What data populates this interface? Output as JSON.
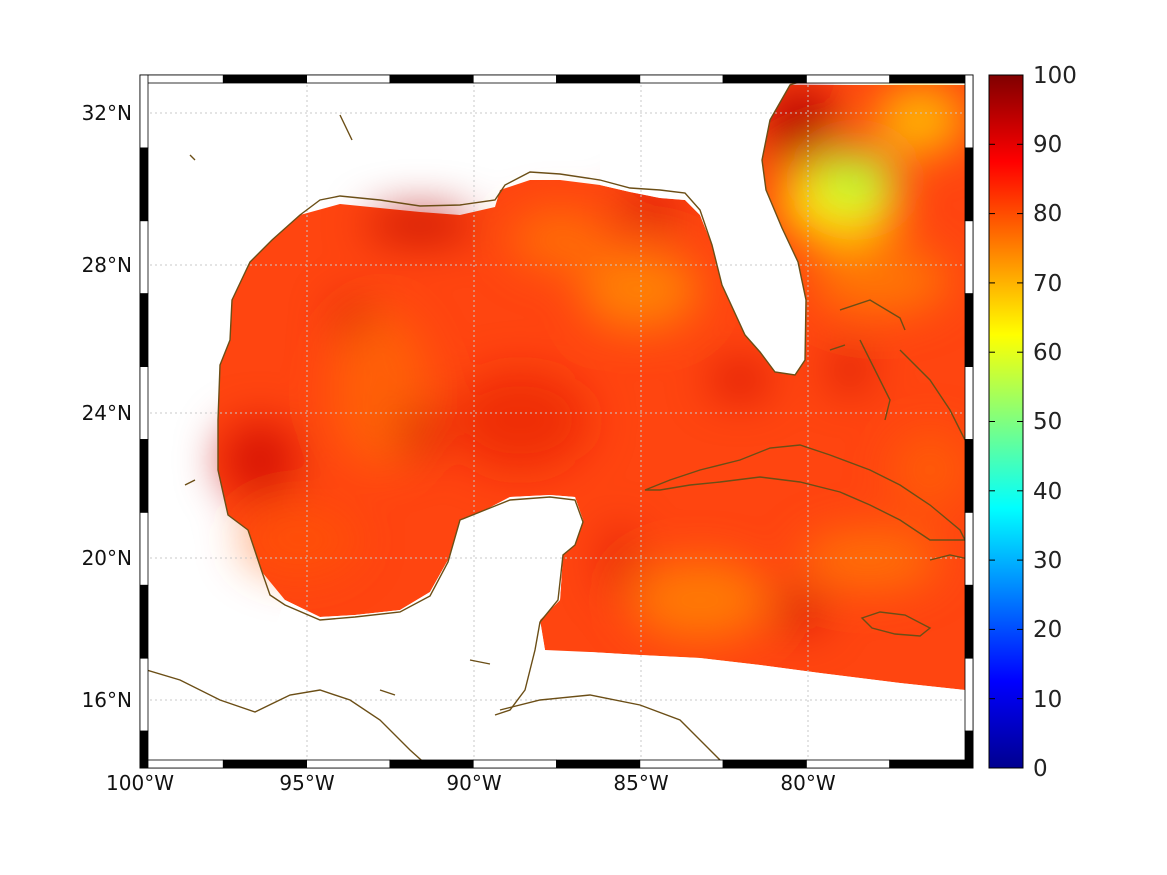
{
  "map": {
    "projection": "mercator",
    "lon_range": [
      -100,
      -75
    ],
    "lat_range": [
      14.3,
      33
    ],
    "x_tick_labels": [
      "100°W",
      "95°W",
      "90°W",
      "85°W",
      "80°W"
    ],
    "y_tick_labels": [
      "32°N",
      "28°N",
      "24°N",
      "20°N",
      "16°N"
    ],
    "grid": "dotted",
    "coastline_color": "#6b4e16",
    "frame": "black-white checkered border",
    "field": "gridded ocean values over the Gulf of Mexico, Caribbean and western Atlantic; land masked white"
  },
  "colorbar": {
    "colormap": "jet",
    "range": [
      0,
      100
    ],
    "tick_labels": [
      "100",
      "90",
      "80",
      "70",
      "60",
      "50",
      "40",
      "30",
      "20",
      "10",
      "0"
    ]
  },
  "chart_data": {
    "type": "heatmap",
    "xlabel": "",
    "ylabel": "",
    "xlim": [
      -100,
      -75
    ],
    "ylim": [
      14.3,
      33
    ],
    "value_range": [
      0,
      100
    ],
    "typical_range": [
      70,
      95
    ],
    "features": [
      {
        "lon": -79.5,
        "lat": 31.5,
        "value": 95
      },
      {
        "lon": -78.5,
        "lat": 29.8,
        "value": 57
      },
      {
        "lon": -92.0,
        "lat": 29.5,
        "value": 93
      },
      {
        "lon": -84.5,
        "lat": 29.3,
        "value": 90
      },
      {
        "lon": -98.5,
        "lat": 22.5,
        "value": 92
      },
      {
        "lon": -92.0,
        "lat": 23.5,
        "value": 92
      },
      {
        "lon": -94.0,
        "lat": 26.5,
        "value": 90
      },
      {
        "lon": -85.0,
        "lat": 27.0,
        "value": 74
      },
      {
        "lon": -80.0,
        "lat": 20.0,
        "value": 75
      },
      {
        "lon": -90.0,
        "lat": 22.0,
        "value": 82
      }
    ]
  }
}
